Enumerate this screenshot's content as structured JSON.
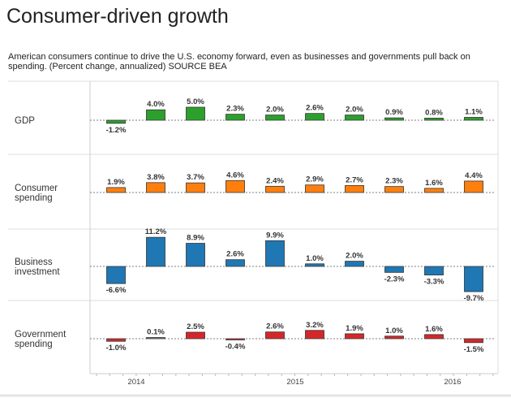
{
  "title": "Consumer-driven growth",
  "subtitle": "American consumers continue to drive the U.S. economy forward, even as businesses and governments pull back on spending. (Percent change, annualized) SOURCE BEA",
  "chart_data": {
    "type": "bar",
    "title": "Consumer-driven growth",
    "unit": "%",
    "x_tick_labels": [
      "2014",
      "2015",
      "2016"
    ],
    "grid": false,
    "series": [
      {
        "name": "GDP",
        "name_lines": [
          "GDP"
        ],
        "color": "#2ca02c",
        "values": [
          -1.2,
          4.0,
          5.0,
          2.3,
          2.0,
          2.6,
          2.0,
          0.9,
          0.8,
          1.1
        ]
      },
      {
        "name": "Consumer spending",
        "name_lines": [
          "Consumer",
          "spending"
        ],
        "color": "#ff7f0e",
        "values": [
          1.9,
          3.8,
          3.7,
          4.6,
          2.4,
          2.9,
          2.7,
          2.3,
          1.6,
          4.4
        ]
      },
      {
        "name": "Business investment",
        "name_lines": [
          "Business",
          "investment"
        ],
        "color": "#1f77b4",
        "values": [
          -6.6,
          11.2,
          8.9,
          2.6,
          9.9,
          1.0,
          2.0,
          -2.3,
          -3.3,
          -9.7
        ]
      },
      {
        "name": "Government spending",
        "name_lines": [
          "Government",
          "spending"
        ],
        "color": "#d62728",
        "values": [
          -1.0,
          0.1,
          2.5,
          -0.4,
          2.6,
          3.2,
          1.9,
          1.0,
          1.6,
          -1.5
        ]
      }
    ]
  }
}
